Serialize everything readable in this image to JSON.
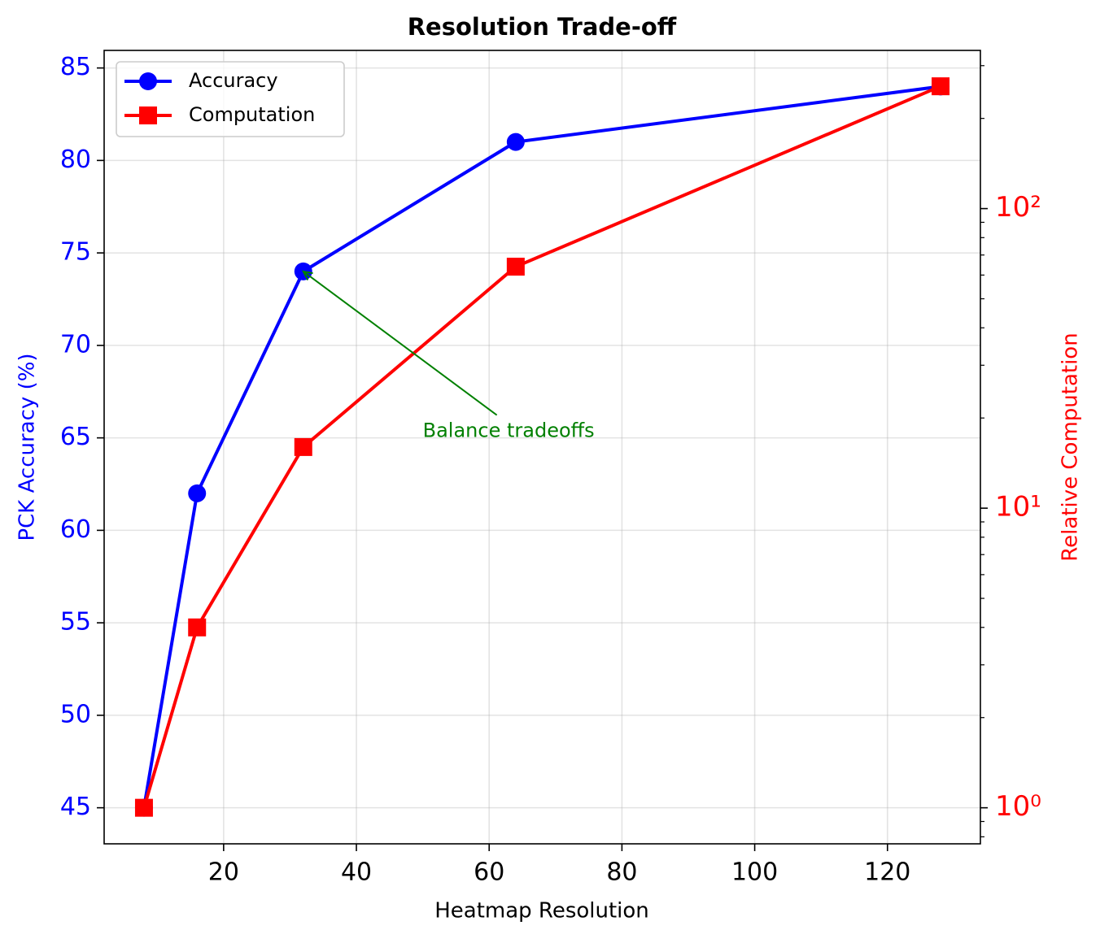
{
  "chart_data": {
    "type": "line",
    "title": "Resolution Trade-off",
    "xlabel": "Heatmap Resolution",
    "ylabel": "PCK Accuracy (%)",
    "y2label": "Relative Computation",
    "x": [
      8,
      16,
      32,
      64,
      128
    ],
    "series": [
      {
        "name": "Accuracy",
        "color": "#0000ff",
        "marker": "circle",
        "values": [
          45,
          62,
          74,
          81,
          84
        ]
      },
      {
        "name": "Computation",
        "color": "#ff0000",
        "marker": "square",
        "axis": "y2",
        "values": [
          1,
          4,
          16,
          64,
          256
        ]
      }
    ],
    "xlim": [
      2,
      134
    ],
    "xticks": [
      20,
      40,
      60,
      80,
      100,
      120
    ],
    "ylim": [
      43.05,
      85.95
    ],
    "yticks": [
      45,
      50,
      55,
      60,
      65,
      70,
      75,
      80,
      85
    ],
    "y2lim": [
      0.758,
      337.3
    ],
    "y2scale": "log",
    "y2ticks": [
      {
        "value": 1,
        "label": "10⁰"
      },
      {
        "value": 10,
        "label": "10¹"
      },
      {
        "value": 100,
        "label": "10²"
      }
    ],
    "y2minor_ticks": [
      0.8,
      0.9,
      2,
      3,
      4,
      5,
      6,
      7,
      8,
      9,
      20,
      30,
      40,
      50,
      60,
      70,
      80,
      90,
      200,
      300
    ],
    "grid": true,
    "legend": "upper left",
    "annotation": {
      "text": "Balance tradeoffs",
      "color": "#008000",
      "xy": [
        32,
        74
      ],
      "xytext": [
        50,
        65
      ]
    }
  }
}
